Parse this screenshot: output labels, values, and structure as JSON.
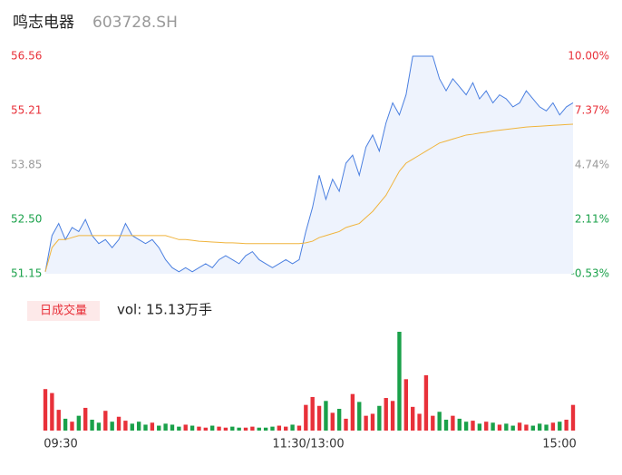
{
  "chart_data": {
    "type": "line",
    "title": "鸣志电器",
    "code": "603728.SH",
    "volume_title": "日成交量",
    "volume_label": "vol: 15.13万手",
    "x_labels": [
      "09:30",
      "11:30/13:00",
      "15:00"
    ],
    "ylim": [
      51.15,
      56.56
    ],
    "yticks": [
      56.56,
      55.21,
      53.85,
      {
        "value": 52.5,
        "label": "52.50"
      },
      51.15
    ],
    "ytick_colors": [
      "#e8313a",
      "#e8313a",
      "#999999",
      "#1aa14a",
      "#1aa14a"
    ],
    "y2lim": [
      -0.53,
      10
    ],
    "y2ticks": [
      {
        "value": 10,
        "label": "10.00%"
      },
      {
        "value": 7.37,
        "label": "7.37%"
      },
      {
        "value": 4.74,
        "label": "4.74%"
      },
      {
        "value": 2.11,
        "label": "2.11%"
      },
      {
        "value": -0.53,
        "label": "-0.53%"
      }
    ],
    "up_color": "#e8313a",
    "down_color": "#1aa14a",
    "series": [
      {
        "name": "price",
        "color": "#4a7fe0",
        "values": [
          51.2,
          52.1,
          52.4,
          52.0,
          52.3,
          52.2,
          52.5,
          52.1,
          51.9,
          52.0,
          51.8,
          52.0,
          52.4,
          52.1,
          52.0,
          51.9,
          52.0,
          51.8,
          51.5,
          51.3,
          51.2,
          51.3,
          51.2,
          51.3,
          51.4,
          51.3,
          51.5,
          51.6,
          51.5,
          51.4,
          51.6,
          51.7,
          51.5,
          51.4,
          51.3,
          51.4,
          51.5,
          51.4,
          51.5,
          52.2,
          52.8,
          53.6,
          53.0,
          53.5,
          53.2,
          53.9,
          54.1,
          53.6,
          54.3,
          54.6,
          54.2,
          54.9,
          55.4,
          55.1,
          55.6,
          56.56,
          56.56,
          56.56,
          56.56,
          56.0,
          55.7,
          56.0,
          55.8,
          55.6,
          55.9,
          55.5,
          55.7,
          55.4,
          55.6,
          55.5,
          55.3,
          55.4,
          55.7,
          55.5,
          55.3,
          55.2,
          55.4,
          55.1,
          55.3,
          55.4
        ]
      },
      {
        "name": "average",
        "color": "#f0b43c",
        "values": [
          51.2,
          51.8,
          52.0,
          52.0,
          52.05,
          52.1,
          52.1,
          52.1,
          52.1,
          52.1,
          52.1,
          52.1,
          52.1,
          52.1,
          52.1,
          52.1,
          52.1,
          52.1,
          52.1,
          52.05,
          52.0,
          52.0,
          51.98,
          51.96,
          51.95,
          51.94,
          51.93,
          51.92,
          51.92,
          51.91,
          51.9,
          51.9,
          51.9,
          51.9,
          51.9,
          51.9,
          51.9,
          51.9,
          51.9,
          51.92,
          51.96,
          52.05,
          52.1,
          52.15,
          52.2,
          52.3,
          52.35,
          52.4,
          52.55,
          52.7,
          52.9,
          53.1,
          53.4,
          53.7,
          53.9,
          54.0,
          54.1,
          54.2,
          54.3,
          54.4,
          54.45,
          54.5,
          54.55,
          54.6,
          54.62,
          54.65,
          54.67,
          54.7,
          54.72,
          54.74,
          54.76,
          54.78,
          54.8,
          54.81,
          54.82,
          54.83,
          54.84,
          54.85,
          54.86,
          54.87
        ]
      }
    ],
    "volume": [
      420,
      380,
      210,
      120,
      90,
      150,
      230,
      110,
      80,
      200,
      90,
      140,
      100,
      70,
      90,
      60,
      80,
      50,
      70,
      60,
      40,
      60,
      50,
      40,
      30,
      50,
      40,
      30,
      40,
      30,
      30,
      40,
      30,
      30,
      40,
      50,
      40,
      60,
      50,
      260,
      340,
      250,
      300,
      180,
      220,
      120,
      370,
      290,
      150,
      170,
      250,
      330,
      300,
      1000,
      520,
      240,
      170,
      560,
      150,
      190,
      110,
      150,
      120,
      90,
      100,
      70,
      90,
      80,
      60,
      70,
      50,
      80,
      60,
      50,
      70,
      60,
      80,
      90,
      110,
      260
    ]
  }
}
